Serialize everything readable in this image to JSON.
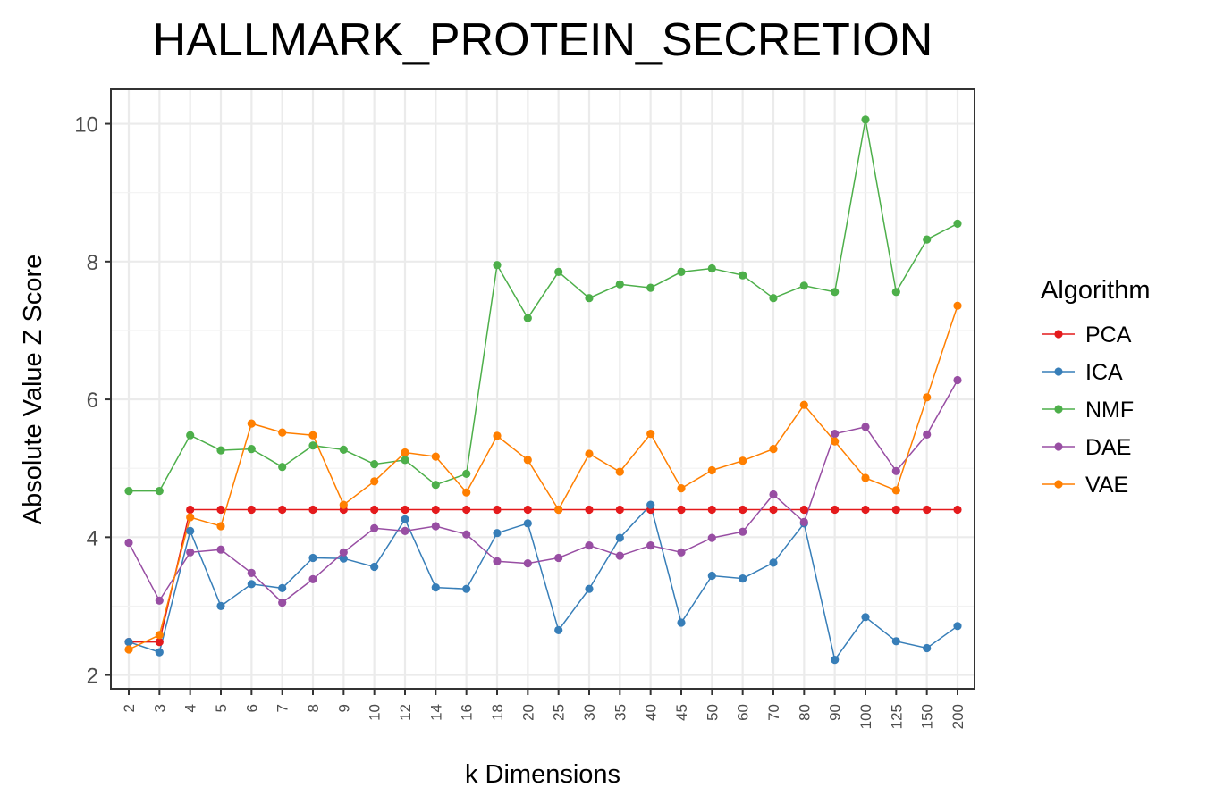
{
  "chart_data": {
    "type": "line",
    "title": "HALLMARK_PROTEIN_SECRETION",
    "xlabel": "k Dimensions",
    "ylabel": "Absolute Value Z Score",
    "categories": [
      "2",
      "3",
      "4",
      "5",
      "6",
      "7",
      "8",
      "9",
      "10",
      "12",
      "14",
      "16",
      "18",
      "20",
      "25",
      "30",
      "35",
      "40",
      "45",
      "50",
      "60",
      "70",
      "80",
      "90",
      "100",
      "125",
      "150",
      "200"
    ],
    "ylim": [
      1.8,
      10.5
    ],
    "yticks": [
      "2",
      "4",
      "6",
      "8",
      "10"
    ],
    "grid": true,
    "legend": {
      "title": "Algorithm",
      "position": "right"
    },
    "series": [
      {
        "name": "PCA",
        "color": "#e41a1c",
        "values": [
          2.48,
          2.48,
          4.4,
          4.4,
          4.4,
          4.4,
          4.4,
          4.4,
          4.4,
          4.4,
          4.4,
          4.4,
          4.4,
          4.4,
          4.4,
          4.4,
          4.4,
          4.4,
          4.4,
          4.4,
          4.4,
          4.4,
          4.4,
          4.4,
          4.4,
          4.4,
          4.4,
          4.4
        ]
      },
      {
        "name": "ICA",
        "color": "#377eb8",
        "values": [
          2.48,
          2.33,
          4.09,
          3.0,
          3.32,
          3.26,
          3.7,
          3.69,
          3.57,
          4.26,
          3.27,
          3.25,
          4.06,
          4.2,
          2.65,
          3.25,
          3.99,
          4.47,
          2.76,
          3.44,
          3.4,
          3.63,
          4.2,
          2.22,
          2.84,
          2.49,
          2.39,
          2.71
        ]
      },
      {
        "name": "NMF",
        "color": "#4daf4a",
        "values": [
          4.67,
          4.67,
          5.48,
          5.26,
          5.28,
          5.02,
          5.33,
          5.27,
          5.06,
          5.12,
          4.76,
          4.92,
          7.95,
          7.18,
          7.85,
          7.47,
          7.67,
          7.62,
          7.85,
          7.9,
          7.8,
          7.47,
          7.65,
          7.56,
          10.06,
          7.56,
          8.32,
          8.55
        ]
      },
      {
        "name": "DAE",
        "color": "#984ea3",
        "values": [
          3.92,
          3.08,
          3.78,
          3.82,
          3.48,
          3.05,
          3.39,
          3.78,
          4.13,
          4.09,
          4.16,
          4.04,
          3.65,
          3.62,
          3.7,
          3.88,
          3.73,
          3.88,
          3.78,
          3.99,
          4.08,
          4.62,
          4.22,
          5.5,
          5.6,
          4.96,
          5.49,
          6.28
        ]
      },
      {
        "name": "VAE",
        "color": "#ff7f00",
        "values": [
          2.37,
          2.58,
          4.29,
          4.16,
          5.65,
          5.52,
          5.48,
          4.47,
          4.81,
          5.23,
          5.17,
          4.65,
          5.47,
          5.12,
          4.4,
          5.21,
          4.95,
          5.5,
          4.71,
          4.97,
          5.11,
          5.28,
          5.92,
          5.39,
          4.86,
          4.68,
          6.03,
          7.36
        ]
      }
    ]
  }
}
